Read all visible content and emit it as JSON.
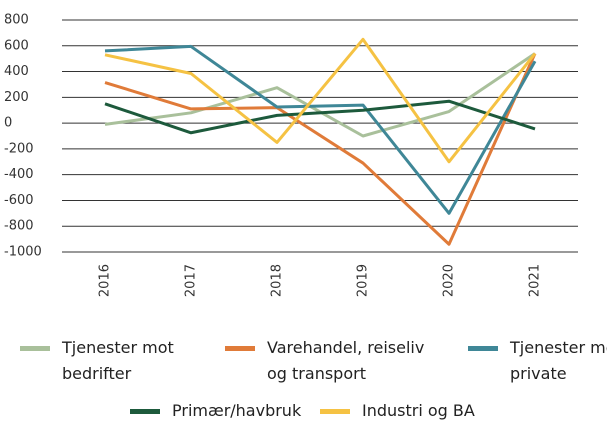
{
  "chart_data": {
    "type": "line",
    "categories": [
      "2016",
      "2017",
      "2018",
      "2019",
      "2020",
      "2021"
    ],
    "series": [
      {
        "name": "Tjenester mot bedrifter",
        "color": "#a9c09b",
        "values": [
          -10,
          80,
          275,
          -100,
          90,
          540
        ]
      },
      {
        "name": "Varehandel, reiseliv og transport",
        "color": "#e07b39",
        "values": [
          315,
          110,
          120,
          -310,
          -940,
          540
        ]
      },
      {
        "name": "Tjenester mot private",
        "color": "#3f8797",
        "values": [
          560,
          595,
          125,
          140,
          -700,
          480
        ]
      },
      {
        "name": "Primær/havbruk",
        "color": "#1d5a3c",
        "values": [
          150,
          -75,
          60,
          100,
          170,
          -45
        ]
      },
      {
        "name": "Industri og BA",
        "color": "#f5c243",
        "values": [
          530,
          385,
          -150,
          650,
          -300,
          540
        ]
      }
    ],
    "ylim": [
      -1000,
      800
    ],
    "yticks": [
      -1000,
      -800,
      -600,
      -400,
      -200,
      0,
      200,
      400,
      600,
      800
    ],
    "grid": true,
    "legend": "bottom"
  }
}
